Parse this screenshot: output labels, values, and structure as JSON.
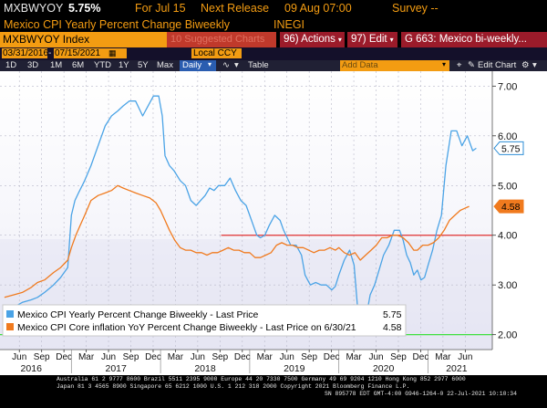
{
  "header": {
    "ticker": "MXBWYOY",
    "value": "5.75%",
    "for_label": "For Jul 15",
    "next_release": "Next Release",
    "release_date": "09 Aug 07:00",
    "survey": "Survey --",
    "description": "Mexico CPI Yearly Percent Change Biweekly",
    "source": "INEGI"
  },
  "toolbar": {
    "index_name": "MXBWYOY Index",
    "suggested": "10 Suggested Charts",
    "actions": "96) Actions",
    "edit": "97) Edit",
    "title_tab": "G 663: Mexico bi-weekly..."
  },
  "controls": {
    "date_start": "03/31/2016",
    "date_end": "07/15/2021",
    "currency": "Local CCY",
    "ranges": [
      "1D",
      "3D",
      "1M",
      "6M",
      "YTD",
      "1Y",
      "5Y",
      "Max"
    ],
    "frequency": "Daily",
    "table": "Table",
    "add_data": "Add Data",
    "edit_chart": "Edit Chart"
  },
  "chart_data": {
    "type": "line",
    "x_labels": [
      "Jun",
      "Sep",
      "Dec",
      "Mar",
      "Jun",
      "Sep",
      "Dec",
      "Mar",
      "Jun",
      "Sep",
      "Dec",
      "Mar",
      "Jun",
      "Sep",
      "Dec",
      "Mar",
      "Jun",
      "Sep",
      "Dec",
      "Mar",
      "Jun"
    ],
    "year_labels": [
      "2016",
      "2017",
      "2018",
      "2019",
      "2020",
      "2021"
    ],
    "y_ticks": [
      "7.00",
      "6.00",
      "5.00",
      "4.00",
      "3.00",
      "2.00"
    ],
    "ylim": [
      1.7,
      7.3
    ],
    "reference_lines": [
      {
        "value": 4.0,
        "color": "#e03030"
      },
      {
        "value": 2.0,
        "color": "#3fe03f"
      }
    ],
    "last_values": [
      {
        "label": "5.75",
        "value": 5.75,
        "color": "#2e8ed6"
      },
      {
        "label": "4.58",
        "value": 4.58,
        "color": "#f07a1e"
      }
    ],
    "series": [
      {
        "name": "Mexico CPI Yearly Percent Change Biweekly",
        "suffix": "Last Price",
        "last": "5.75",
        "color": "#4aa3e6",
        "points": [
          [
            2016.25,
            2.6
          ],
          [
            2016.35,
            2.55
          ],
          [
            2016.45,
            2.65
          ],
          [
            2016.55,
            2.7
          ],
          [
            2016.62,
            2.75
          ],
          [
            2016.7,
            2.85
          ],
          [
            2016.8,
            3.0
          ],
          [
            2016.88,
            3.15
          ],
          [
            2016.96,
            3.35
          ],
          [
            2017.0,
            4.4
          ],
          [
            2017.04,
            4.7
          ],
          [
            2017.08,
            4.85
          ],
          [
            2017.15,
            5.1
          ],
          [
            2017.22,
            5.4
          ],
          [
            2017.3,
            5.8
          ],
          [
            2017.38,
            6.2
          ],
          [
            2017.45,
            6.4
          ],
          [
            2017.52,
            6.5
          ],
          [
            2017.58,
            6.6
          ],
          [
            2017.65,
            6.7
          ],
          [
            2017.72,
            6.7
          ],
          [
            2017.8,
            6.4
          ],
          [
            2017.86,
            6.6
          ],
          [
            2017.92,
            6.8
          ],
          [
            2017.98,
            6.8
          ],
          [
            2018.02,
            6.4
          ],
          [
            2018.05,
            5.6
          ],
          [
            2018.1,
            5.4
          ],
          [
            2018.15,
            5.3
          ],
          [
            2018.22,
            5.1
          ],
          [
            2018.28,
            5.0
          ],
          [
            2018.34,
            4.7
          ],
          [
            2018.4,
            4.6
          ],
          [
            2018.45,
            4.7
          ],
          [
            2018.5,
            4.8
          ],
          [
            2018.55,
            4.95
          ],
          [
            2018.6,
            4.9
          ],
          [
            2018.65,
            5.0
          ],
          [
            2018.72,
            5.0
          ],
          [
            2018.78,
            5.15
          ],
          [
            2018.84,
            4.9
          ],
          [
            2018.9,
            4.7
          ],
          [
            2018.96,
            4.6
          ],
          [
            2019.0,
            4.4
          ],
          [
            2019.04,
            4.2
          ],
          [
            2019.08,
            4.0
          ],
          [
            2019.12,
            3.95
          ],
          [
            2019.17,
            4.0
          ],
          [
            2019.22,
            4.2
          ],
          [
            2019.28,
            4.4
          ],
          [
            2019.34,
            4.3
          ],
          [
            2019.38,
            4.1
          ],
          [
            2019.42,
            3.95
          ],
          [
            2019.46,
            3.8
          ],
          [
            2019.52,
            3.8
          ],
          [
            2019.58,
            3.6
          ],
          [
            2019.62,
            3.2
          ],
          [
            2019.68,
            3.0
          ],
          [
            2019.74,
            3.05
          ],
          [
            2019.8,
            3.0
          ],
          [
            2019.86,
            3.0
          ],
          [
            2019.92,
            2.9
          ],
          [
            2019.96,
            2.97
          ],
          [
            2020.0,
            3.2
          ],
          [
            2020.06,
            3.5
          ],
          [
            2020.12,
            3.7
          ],
          [
            2020.17,
            3.4
          ],
          [
            2020.22,
            2.3
          ],
          [
            2020.26,
            2.1
          ],
          [
            2020.3,
            2.3
          ],
          [
            2020.35,
            2.8
          ],
          [
            2020.4,
            3.0
          ],
          [
            2020.45,
            3.3
          ],
          [
            2020.5,
            3.6
          ],
          [
            2020.56,
            3.8
          ],
          [
            2020.62,
            4.1
          ],
          [
            2020.68,
            4.1
          ],
          [
            2020.72,
            3.9
          ],
          [
            2020.76,
            3.6
          ],
          [
            2020.8,
            3.45
          ],
          [
            2020.84,
            3.2
          ],
          [
            2020.88,
            3.3
          ],
          [
            2020.92,
            3.1
          ],
          [
            2020.96,
            3.15
          ],
          [
            2021.0,
            3.4
          ],
          [
            2021.05,
            3.7
          ],
          [
            2021.1,
            4.1
          ],
          [
            2021.15,
            4.4
          ],
          [
            2021.2,
            5.4
          ],
          [
            2021.26,
            6.1
          ],
          [
            2021.32,
            6.1
          ],
          [
            2021.38,
            5.8
          ],
          [
            2021.44,
            6.0
          ],
          [
            2021.5,
            5.7
          ],
          [
            2021.54,
            5.75
          ]
        ]
      },
      {
        "name": "Mexico CPI Core inflation YoY Percent Change Biweekly",
        "suffix": "Last Price on 6/30/21",
        "last": "4.58",
        "color": "#f07a1e",
        "points": [
          [
            2016.25,
            2.75
          ],
          [
            2016.35,
            2.8
          ],
          [
            2016.45,
            2.85
          ],
          [
            2016.55,
            2.95
          ],
          [
            2016.62,
            3.05
          ],
          [
            2016.7,
            3.1
          ],
          [
            2016.8,
            3.25
          ],
          [
            2016.88,
            3.35
          ],
          [
            2016.96,
            3.5
          ],
          [
            2017.0,
            3.75
          ],
          [
            2017.05,
            4.0
          ],
          [
            2017.1,
            4.2
          ],
          [
            2017.15,
            4.4
          ],
          [
            2017.22,
            4.7
          ],
          [
            2017.3,
            4.8
          ],
          [
            2017.38,
            4.85
          ],
          [
            2017.45,
            4.9
          ],
          [
            2017.52,
            5.0
          ],
          [
            2017.58,
            4.95
          ],
          [
            2017.65,
            4.9
          ],
          [
            2017.72,
            4.85
          ],
          [
            2017.8,
            4.8
          ],
          [
            2017.88,
            4.75
          ],
          [
            2017.95,
            4.65
          ],
          [
            2018.0,
            4.5
          ],
          [
            2018.05,
            4.3
          ],
          [
            2018.1,
            4.1
          ],
          [
            2018.16,
            3.9
          ],
          [
            2018.22,
            3.75
          ],
          [
            2018.28,
            3.7
          ],
          [
            2018.34,
            3.7
          ],
          [
            2018.4,
            3.65
          ],
          [
            2018.46,
            3.65
          ],
          [
            2018.52,
            3.6
          ],
          [
            2018.58,
            3.65
          ],
          [
            2018.64,
            3.65
          ],
          [
            2018.7,
            3.7
          ],
          [
            2018.76,
            3.75
          ],
          [
            2018.82,
            3.7
          ],
          [
            2018.88,
            3.7
          ],
          [
            2018.94,
            3.65
          ],
          [
            2019.0,
            3.65
          ],
          [
            2019.06,
            3.55
          ],
          [
            2019.12,
            3.55
          ],
          [
            2019.18,
            3.6
          ],
          [
            2019.24,
            3.65
          ],
          [
            2019.3,
            3.8
          ],
          [
            2019.36,
            3.85
          ],
          [
            2019.42,
            3.8
          ],
          [
            2019.48,
            3.8
          ],
          [
            2019.54,
            3.75
          ],
          [
            2019.6,
            3.75
          ],
          [
            2019.66,
            3.7
          ],
          [
            2019.72,
            3.65
          ],
          [
            2019.78,
            3.7
          ],
          [
            2019.84,
            3.7
          ],
          [
            2019.9,
            3.75
          ],
          [
            2019.96,
            3.7
          ],
          [
            2020.0,
            3.75
          ],
          [
            2020.06,
            3.65
          ],
          [
            2020.12,
            3.6
          ],
          [
            2020.18,
            3.65
          ],
          [
            2020.24,
            3.5
          ],
          [
            2020.3,
            3.6
          ],
          [
            2020.36,
            3.7
          ],
          [
            2020.42,
            3.8
          ],
          [
            2020.48,
            3.95
          ],
          [
            2020.54,
            3.95
          ],
          [
            2020.6,
            4.0
          ],
          [
            2020.66,
            4.0
          ],
          [
            2020.72,
            3.95
          ],
          [
            2020.78,
            3.85
          ],
          [
            2020.84,
            3.7
          ],
          [
            2020.88,
            3.7
          ],
          [
            2020.94,
            3.8
          ],
          [
            2021.0,
            3.8
          ],
          [
            2021.06,
            3.85
          ],
          [
            2021.12,
            3.95
          ],
          [
            2021.18,
            4.1
          ],
          [
            2021.24,
            4.3
          ],
          [
            2021.3,
            4.4
          ],
          [
            2021.36,
            4.5
          ],
          [
            2021.42,
            4.55
          ],
          [
            2021.46,
            4.58
          ]
        ]
      }
    ]
  },
  "footer": {
    "line1": "Australia 61 2 9777 8600 Brazil 5511 2395 9000 Europe 44 20 7330 7500 Germany 49 69 9204 1210 Hong Kong 852 2977 6000",
    "line2": "Japan 81 3 4565 8900        Singapore 65 6212 1000        U.S. 1 212 318 2000          Copyright 2021 Bloomberg Finance L.P.",
    "line3": "SN 895778 EDT  GMT-4:00 G946-1264-0 22-Jul-2021 10:10:34"
  }
}
